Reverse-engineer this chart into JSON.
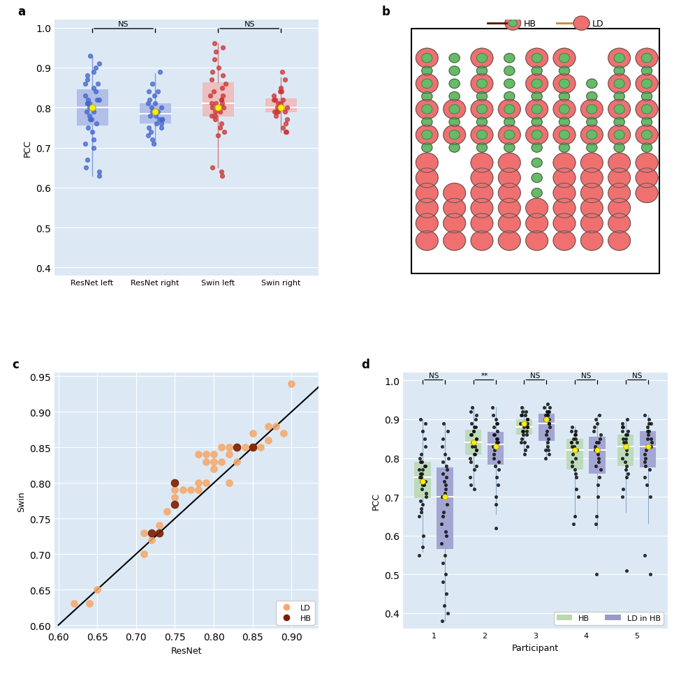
{
  "panel_a": {
    "bg_color": "#dce9f5",
    "dot_color_blue": "#4466cc",
    "dot_color_red": "#cc3333",
    "yellow_dot": "#ffee00",
    "categories": [
      "ResNet left",
      "ResNet right",
      "Swin left",
      "Swin right"
    ],
    "ylabel": "PCC",
    "ylim": [
      0.38,
      1.02
    ],
    "yticks": [
      0.4,
      0.5,
      0.6,
      0.7,
      0.8,
      0.9,
      1.0
    ],
    "resnet_left": [
      0.93,
      0.91,
      0.9,
      0.89,
      0.88,
      0.87,
      0.86,
      0.86,
      0.85,
      0.84,
      0.83,
      0.82,
      0.82,
      0.82,
      0.81,
      0.81,
      0.81,
      0.8,
      0.8,
      0.8,
      0.79,
      0.79,
      0.78,
      0.77,
      0.77,
      0.76,
      0.75,
      0.74,
      0.72,
      0.71,
      0.7,
      0.67,
      0.65,
      0.64,
      0.63
    ],
    "resnet_right": [
      0.89,
      0.86,
      0.84,
      0.84,
      0.83,
      0.82,
      0.81,
      0.81,
      0.8,
      0.8,
      0.79,
      0.79,
      0.79,
      0.78,
      0.78,
      0.77,
      0.77,
      0.77,
      0.76,
      0.76,
      0.75,
      0.75,
      0.74,
      0.73,
      0.72,
      0.71
    ],
    "swin_left": [
      0.96,
      0.95,
      0.94,
      0.92,
      0.9,
      0.89,
      0.88,
      0.87,
      0.86,
      0.85,
      0.84,
      0.83,
      0.83,
      0.82,
      0.82,
      0.81,
      0.81,
      0.81,
      0.8,
      0.8,
      0.79,
      0.79,
      0.78,
      0.78,
      0.77,
      0.76,
      0.75,
      0.74,
      0.73,
      0.65,
      0.64,
      0.63
    ],
    "swin_right": [
      0.89,
      0.87,
      0.85,
      0.84,
      0.84,
      0.83,
      0.82,
      0.82,
      0.82,
      0.81,
      0.81,
      0.8,
      0.8,
      0.8,
      0.79,
      0.79,
      0.79,
      0.79,
      0.78,
      0.77,
      0.76,
      0.75,
      0.74,
      0.74
    ],
    "means": [
      0.8,
      0.79,
      0.8,
      0.8
    ],
    "box_colors": [
      "#aab8e8",
      "#aab8e8",
      "#f0b8b8",
      "#f0b8b8"
    ]
  },
  "panel_b": {
    "red_color": "#f07070",
    "green_color": "#66bb66",
    "outline_color": "#555555",
    "bg_color": "#ffffff",
    "hb_line_color": "#5a1000",
    "ld_line_color": "#cc8833"
  },
  "panel_c": {
    "bg_color": "#dce9f5",
    "ld_color": "#f5a86a",
    "hb_color": "#7a2000",
    "xlabel": "ResNet",
    "ylabel": "Swin",
    "xlim": [
      0.595,
      0.935
    ],
    "ylim": [
      0.595,
      0.955
    ],
    "xticks": [
      0.6,
      0.65,
      0.7,
      0.75,
      0.8,
      0.85,
      0.9
    ],
    "yticks": [
      0.6,
      0.65,
      0.7,
      0.75,
      0.8,
      0.85,
      0.9,
      0.95
    ],
    "ld_x": [
      0.62,
      0.64,
      0.65,
      0.71,
      0.71,
      0.72,
      0.73,
      0.74,
      0.75,
      0.75,
      0.76,
      0.77,
      0.78,
      0.78,
      0.78,
      0.79,
      0.79,
      0.79,
      0.8,
      0.8,
      0.8,
      0.81,
      0.81,
      0.82,
      0.82,
      0.82,
      0.83,
      0.84,
      0.85,
      0.85,
      0.86,
      0.87,
      0.87,
      0.88,
      0.89,
      0.9
    ],
    "ld_y": [
      0.63,
      0.63,
      0.65,
      0.73,
      0.7,
      0.72,
      0.74,
      0.76,
      0.79,
      0.78,
      0.79,
      0.79,
      0.84,
      0.8,
      0.79,
      0.8,
      0.84,
      0.83,
      0.82,
      0.83,
      0.84,
      0.83,
      0.85,
      0.84,
      0.85,
      0.8,
      0.83,
      0.85,
      0.85,
      0.87,
      0.85,
      0.86,
      0.88,
      0.88,
      0.87,
      0.94
    ],
    "hb_x": [
      0.72,
      0.73,
      0.75,
      0.75,
      0.83,
      0.85
    ],
    "hb_y": [
      0.73,
      0.73,
      0.8,
      0.77,
      0.85,
      0.85
    ]
  },
  "panel_d": {
    "bg_color": "#dce9f5",
    "hb_color": "#b8d8b0",
    "ld_color": "#9999cc",
    "dot_color": "#111111",
    "yellow_dot": "#ffee00",
    "ylabel": "PCC",
    "xlabel": "Participant",
    "ylim": [
      0.36,
      1.02
    ],
    "yticks": [
      0.4,
      0.5,
      0.6,
      0.7,
      0.8,
      0.9,
      1.0
    ],
    "participants": [
      1,
      2,
      3,
      4,
      5
    ],
    "hb_data": {
      "1": [
        0.9,
        0.89,
        0.87,
        0.85,
        0.83,
        0.81,
        0.8,
        0.79,
        0.79,
        0.78,
        0.78,
        0.77,
        0.77,
        0.76,
        0.76,
        0.75,
        0.75,
        0.74,
        0.74,
        0.73,
        0.73,
        0.72,
        0.71,
        0.7,
        0.69,
        0.68,
        0.67,
        0.66,
        0.65,
        0.6,
        0.57,
        0.55
      ],
      "2": [
        0.93,
        0.92,
        0.91,
        0.9,
        0.89,
        0.88,
        0.88,
        0.87,
        0.87,
        0.86,
        0.86,
        0.85,
        0.85,
        0.84,
        0.84,
        0.83,
        0.83,
        0.82,
        0.82,
        0.81,
        0.81,
        0.8,
        0.79,
        0.78,
        0.77,
        0.75,
        0.73,
        0.72
      ],
      "3": [
        0.93,
        0.92,
        0.92,
        0.91,
        0.91,
        0.91,
        0.9,
        0.9,
        0.9,
        0.89,
        0.89,
        0.89,
        0.88,
        0.88,
        0.88,
        0.87,
        0.87,
        0.87,
        0.86,
        0.86,
        0.85,
        0.84,
        0.83,
        0.82,
        0.81,
        0.84
      ],
      "4": [
        0.88,
        0.87,
        0.87,
        0.86,
        0.86,
        0.85,
        0.85,
        0.84,
        0.84,
        0.84,
        0.83,
        0.83,
        0.82,
        0.82,
        0.81,
        0.8,
        0.79,
        0.78,
        0.77,
        0.76,
        0.75,
        0.72,
        0.7,
        0.65,
        0.63
      ],
      "5": [
        0.9,
        0.89,
        0.88,
        0.88,
        0.87,
        0.87,
        0.86,
        0.86,
        0.85,
        0.85,
        0.84,
        0.84,
        0.83,
        0.83,
        0.82,
        0.81,
        0.8,
        0.79,
        0.78,
        0.77,
        0.76,
        0.75,
        0.72,
        0.7,
        0.51
      ]
    },
    "ld_data": {
      "1": [
        0.89,
        0.87,
        0.85,
        0.83,
        0.81,
        0.8,
        0.79,
        0.78,
        0.77,
        0.76,
        0.75,
        0.74,
        0.73,
        0.72,
        0.71,
        0.7,
        0.68,
        0.66,
        0.65,
        0.63,
        0.61,
        0.6,
        0.58,
        0.55,
        0.53,
        0.5,
        0.48,
        0.45,
        0.42,
        0.4,
        0.38
      ],
      "2": [
        0.93,
        0.91,
        0.9,
        0.89,
        0.89,
        0.88,
        0.87,
        0.86,
        0.86,
        0.85,
        0.85,
        0.84,
        0.84,
        0.83,
        0.83,
        0.82,
        0.81,
        0.8,
        0.79,
        0.78,
        0.77,
        0.75,
        0.73,
        0.7,
        0.68,
        0.62
      ],
      "3": [
        0.94,
        0.93,
        0.93,
        0.92,
        0.92,
        0.92,
        0.91,
        0.91,
        0.91,
        0.9,
        0.9,
        0.89,
        0.89,
        0.88,
        0.87,
        0.86,
        0.85,
        0.84,
        0.83,
        0.82,
        0.81,
        0.8,
        0.82
      ],
      "4": [
        0.91,
        0.9,
        0.89,
        0.88,
        0.87,
        0.86,
        0.85,
        0.84,
        0.84,
        0.83,
        0.82,
        0.82,
        0.81,
        0.8,
        0.79,
        0.78,
        0.77,
        0.75,
        0.73,
        0.7,
        0.65,
        0.63,
        0.5
      ],
      "5": [
        0.91,
        0.9,
        0.89,
        0.89,
        0.88,
        0.87,
        0.87,
        0.86,
        0.85,
        0.85,
        0.84,
        0.83,
        0.82,
        0.81,
        0.8,
        0.79,
        0.78,
        0.77,
        0.75,
        0.73,
        0.7,
        0.55,
        0.5
      ]
    },
    "hb_means": [
      0.74,
      0.84,
      0.89,
      0.82,
      0.83
    ],
    "ld_means": [
      0.7,
      0.83,
      0.9,
      0.82,
      0.83
    ],
    "sig_labels": [
      "NS",
      "**",
      "NS",
      "NS",
      "NS"
    ]
  }
}
